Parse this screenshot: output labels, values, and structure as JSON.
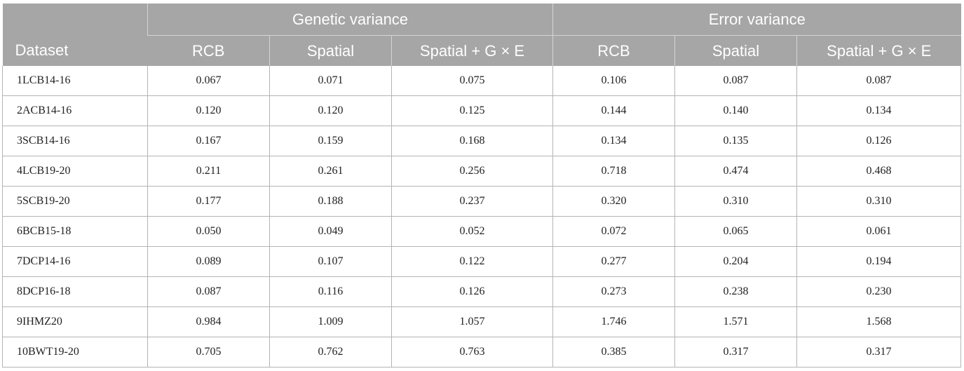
{
  "table": {
    "dataset_header": "Dataset",
    "groups": [
      "Genetic variance",
      "Error variance"
    ],
    "subheaders": [
      "RCB",
      "Spatial",
      "Spatial + G × E",
      "RCB",
      "Spatial",
      "Spatial + G × E"
    ],
    "rows": [
      [
        "1LCB14-16",
        "0.067",
        "0.071",
        "0.075",
        "0.106",
        "0.087",
        "0.087"
      ],
      [
        "2ACB14-16",
        "0.120",
        "0.120",
        "0.125",
        "0.144",
        "0.140",
        "0.134"
      ],
      [
        "3SCB14-16",
        "0.167",
        "0.159",
        "0.168",
        "0.134",
        "0.135",
        "0.126"
      ],
      [
        "4LCB19-20",
        "0.211",
        "0.261",
        "0.256",
        "0.718",
        "0.474",
        "0.468"
      ],
      [
        "5SCB19-20",
        "0.177",
        "0.188",
        "0.237",
        "0.320",
        "0.310",
        "0.310"
      ],
      [
        "6BCB15-18",
        "0.050",
        "0.049",
        "0.052",
        "0.072",
        "0.065",
        "0.061"
      ],
      [
        "7DCP14-16",
        "0.089",
        "0.107",
        "0.122",
        "0.277",
        "0.204",
        "0.194"
      ],
      [
        "8DCP16-18",
        "0.087",
        "0.116",
        "0.126",
        "0.273",
        "0.238",
        "0.230"
      ],
      [
        "9IHMZ20",
        "0.984",
        "1.009",
        "1.057",
        "1.746",
        "1.571",
        "1.568"
      ],
      [
        "10BWT19-20",
        "0.705",
        "0.762",
        "0.763",
        "0.385",
        "0.317",
        "0.317"
      ]
    ]
  }
}
